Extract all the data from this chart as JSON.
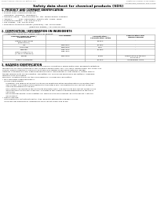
{
  "header_left": "Product Name: Lithium Ion Battery Cell",
  "header_right_1": "Substance number: M306V0EEFS",
  "header_right_2": "Established / Revision: Dec.7 2016",
  "title": "Safety data sheet for chemical products (SDS)",
  "section1_title": "1. PRODUCT AND COMPANY IDENTIFICATION",
  "section1_lines": [
    "• Product name: Lithium Ion Battery Cell",
    "• Product code: Cylindrical-type cell",
    "   (IFR18650, IFR18650L, IFR18650A)",
    "• Company name:    Sanyo Electric Co., Ltd., Mobile Energy Company",
    "• Address:           2001  Kamikaikan, Sumoto-City, Hyogo, Japan",
    "• Telephone number:   +81-799-26-4111",
    "• Fax number:  +81-799-26-4129",
    "• Emergency telephone number (Weekday): +81-799-26-3862",
    "                                              (Night and holiday): +81-799-26-4101"
  ],
  "section2_title": "2. COMPOSITION / INFORMATION ON INGREDIENTS",
  "section2_intro": "• Substance or preparation: Preparation",
  "section2_sub": "  • Information about the chemical nature of product:",
  "table_col_header_row1": [
    "Common chemical name /",
    "CAS number",
    "Concentration /",
    "Classification and"
  ],
  "table_col_header_row2": [
    "Several name",
    "",
    "Concentration range",
    "hazard labeling"
  ],
  "table_rows": [
    [
      "Lithium cobalt oxide",
      "-",
      "30-60%",
      "-"
    ],
    [
      "(LiMnCoNiO4)",
      "",
      "",
      ""
    ],
    [
      "Iron",
      "7439-89-6",
      "15-25%",
      "-"
    ],
    [
      "Aluminium",
      "7429-90-5",
      "2-5%",
      "-"
    ],
    [
      "Graphite",
      "7782-42-5",
      "10-25%",
      "-"
    ],
    [
      "(Flake or graphite-1)",
      "7782-44-2",
      "",
      ""
    ],
    [
      "(Al-Mo or graphite-2)",
      "",
      "",
      ""
    ],
    [
      "Copper",
      "7440-50-8",
      "5-15%",
      "Sensitization of the skin"
    ],
    [
      "",
      "",
      "",
      "group No.2"
    ],
    [
      "Organic electrolyte",
      "-",
      "10-20%",
      "Inflammable liquid"
    ]
  ],
  "section3_title": "3. HAZARDS IDENTIFICATION",
  "section3_text": [
    "For the battery cell, chemical materials are stored in a hermetically sealed metal case, designed to withstand",
    "temperature cycling in automobile-type conditions during normal use. As a result, during normal use, there is no",
    "physical danger of ignition or explosion and there is no danger of hazardous materials leakage.",
    "However, if exposed to a fire, added mechanical shocks, decomposed, or heat storms or battery misuse,",
    "the gas release vents can be operated. The battery cell case will be breached of fire-patterns, hazardous",
    "materials may be released.",
    "Moreover, if heated strongly by the surrounding fire, solid gas may be emitted."
  ],
  "section3_bullets": [
    "• Most important hazard and effects:",
    "   Human health effects:",
    "      Inhalation: The release of the electrolyte has an anesthesia action and stimulates in respiratory tract.",
    "      Skin contact: The release of the electrolyte stimulates a skin. The electrolyte skin contact causes a",
    "      sore and stimulation on the skin.",
    "      Eye contact: The release of the electrolyte stimulates eyes. The electrolyte eye contact causes a sore",
    "      and stimulation on the eye. Especially, a substance that causes a strong inflammation of the eye is",
    "      contained.",
    "      Environmental effects: Since a battery cell remains in the environment, do not throw out it into the",
    "      environment.",
    "• Specific hazards:",
    "   If the electrolyte contacts with water, it will generate detrimental hydrogen fluoride.",
    "   Since the seal electrolyte is inflammable liquid, do not bring close to fire."
  ],
  "bg_color": "#ffffff",
  "text_color": "#111111",
  "header_color": "#666666",
  "title_color": "#000000",
  "table_border_color": "#999999",
  "section_title_color": "#000000"
}
